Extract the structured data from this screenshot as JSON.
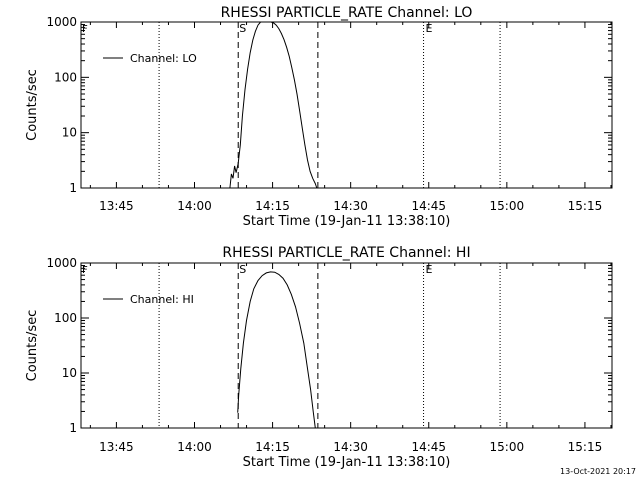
{
  "colors": {
    "background": "#ffffff",
    "foreground": "#000000"
  },
  "timestamp": "13-Oct-2021 20:17",
  "chart_data": [
    {
      "type": "line",
      "title": "RHESSI PARTICLE_RATE Channel: LO",
      "xlabel": "Start Time (19-Jan-11 13:38:10)",
      "ylabel": "Counts/sec",
      "legend": "Channel: LO",
      "legend_position": "top-left",
      "x_unit": "minutes after 13:38:10",
      "xlim": [
        0,
        102
      ],
      "ylim": [
        1,
        1000
      ],
      "yscale": "log",
      "x_ticks": [
        {
          "x": 6.8,
          "label": "13:45"
        },
        {
          "x": 21.8,
          "label": "14:00"
        },
        {
          "x": 36.8,
          "label": "14:15"
        },
        {
          "x": 51.8,
          "label": "14:30"
        },
        {
          "x": 66.8,
          "label": "14:45"
        },
        {
          "x": 81.8,
          "label": "15:00"
        },
        {
          "x": 96.8,
          "label": "15:15"
        }
      ],
      "y_ticks": [
        {
          "y": 1,
          "label": "1"
        },
        {
          "y": 10,
          "label": "10"
        },
        {
          "y": 100,
          "label": "100"
        },
        {
          "y": 1000,
          "label": "1000"
        }
      ],
      "dashed_lines": [
        {
          "x": 30.2,
          "label": "S"
        },
        {
          "x": 45.5,
          "label": ""
        }
      ],
      "dotted_lines": [
        {
          "x": 15,
          "label": ""
        },
        {
          "x": 65.8,
          "label": "E"
        },
        {
          "x": 80.5,
          "label": ""
        }
      ],
      "corner_marker": "F",
      "series": [
        {
          "name": "Channel: LO",
          "x": [
            28.6,
            28.9,
            29.2,
            29.5,
            29.8,
            30.2,
            30.6,
            31.0,
            31.5,
            32.0,
            32.5,
            33.0,
            33.5,
            34.0,
            34.5,
            35.0,
            35.5,
            36.0,
            36.5,
            37.0,
            37.5,
            38.0,
            38.5,
            39.0,
            39.5,
            40.0,
            40.5,
            41.0,
            41.5,
            42.0,
            42.5,
            43.0,
            43.5,
            44.0,
            44.5,
            45.0,
            45.3
          ],
          "y": [
            1,
            1.8,
            1.5,
            2.5,
            1.9,
            2.8,
            6,
            20,
            60,
            140,
            280,
            470,
            680,
            880,
            1000,
            1000,
            1000,
            1000,
            1000,
            960,
            880,
            760,
            620,
            480,
            350,
            240,
            150,
            90,
            50,
            25,
            12,
            6,
            3.2,
            2,
            1.5,
            1.2,
            1
          ]
        }
      ]
    },
    {
      "type": "line",
      "title": "RHESSI PARTICLE_RATE Channel: HI",
      "xlabel": "Start Time (19-Jan-11 13:38:10)",
      "ylabel": "Counts/sec",
      "legend": "Channel: HI",
      "legend_position": "top-left",
      "x_unit": "minutes after 13:38:10",
      "xlim": [
        0,
        102
      ],
      "ylim": [
        1,
        1000
      ],
      "yscale": "log",
      "x_ticks": [
        {
          "x": 6.8,
          "label": "13:45"
        },
        {
          "x": 21.8,
          "label": "14:00"
        },
        {
          "x": 36.8,
          "label": "14:15"
        },
        {
          "x": 51.8,
          "label": "14:30"
        },
        {
          "x": 66.8,
          "label": "14:45"
        },
        {
          "x": 81.8,
          "label": "15:00"
        },
        {
          "x": 96.8,
          "label": "15:15"
        }
      ],
      "y_ticks": [
        {
          "y": 1,
          "label": "1"
        },
        {
          "y": 10,
          "label": "10"
        },
        {
          "y": 100,
          "label": "100"
        },
        {
          "y": 1000,
          "label": "1000"
        }
      ],
      "dashed_lines": [
        {
          "x": 30.2,
          "label": "S"
        },
        {
          "x": 45.5,
          "label": ""
        }
      ],
      "dotted_lines": [
        {
          "x": 15,
          "label": ""
        },
        {
          "x": 65.8,
          "label": "E"
        },
        {
          "x": 80.5,
          "label": ""
        }
      ],
      "corner_marker": "F",
      "series": [
        {
          "name": "Channel: HI",
          "x": [
            30.1,
            30.3,
            30.7,
            31.2,
            31.8,
            32.5,
            33.2,
            34.0,
            34.8,
            35.6,
            36.4,
            37.2,
            38.0,
            38.8,
            39.6,
            40.4,
            41.2,
            42.0,
            42.8,
            43.5,
            44.1,
            44.6,
            45.0
          ],
          "y": [
            1.9,
            4,
            12,
            35,
            90,
            200,
            340,
            480,
            590,
            660,
            690,
            680,
            620,
            530,
            400,
            270,
            160,
            80,
            35,
            12,
            5,
            2,
            1
          ]
        }
      ]
    }
  ]
}
